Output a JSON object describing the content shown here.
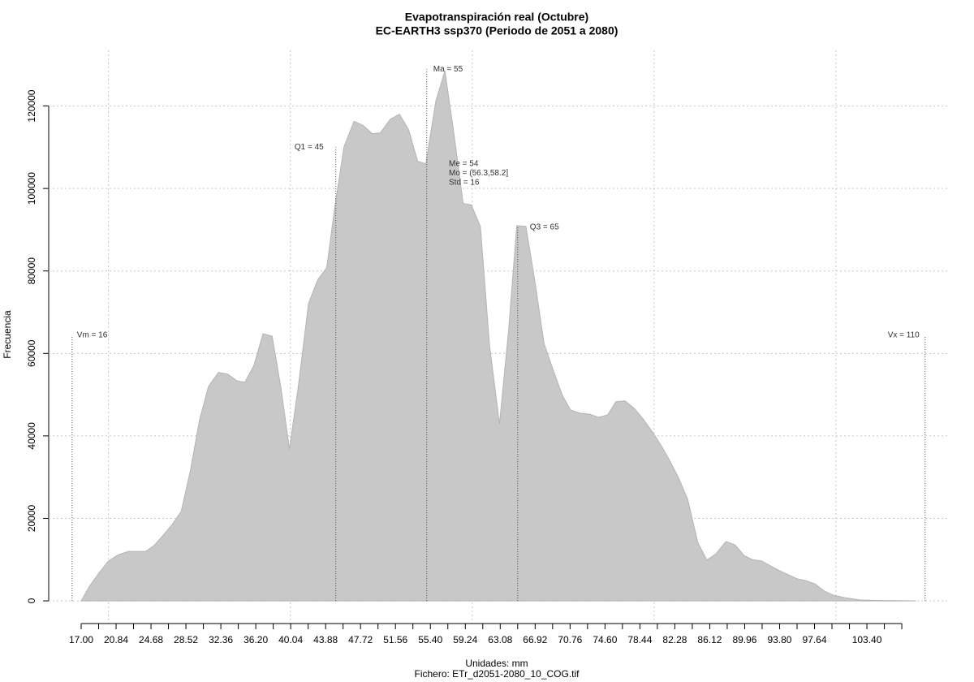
{
  "chart_data": {
    "type": "area",
    "title": "Evapotranspiración real (Octubre)",
    "subtitle": "EC-EARTH3 ssp370 (Periodo de 2051 a 2080)",
    "x_label": "Unidades: mm",
    "footer": "Fichero: ETr_d2051-2080_10_COG.tif",
    "y_label": "Frecuencia",
    "color": "#c8c8c8",
    "x": [
      17.0,
      17.9,
      19.0,
      20.0,
      21.1,
      22.2,
      23.3,
      24.1,
      25.0,
      25.9,
      27.0,
      28.0,
      29.0,
      30.0,
      31.0,
      32.1,
      33.1,
      34.1,
      35.0,
      36.0,
      37.0,
      38.0,
      39.0,
      39.9,
      40.9,
      42.0,
      43.0,
      44.0,
      44.9,
      45.9,
      47.0,
      48.0,
      49.0,
      49.9,
      51.0,
      52.0,
      53.0,
      54.0,
      54.9,
      56.0,
      57.0,
      58.0,
      59.0,
      59.9,
      60.9,
      61.9,
      63.0,
      64.0,
      64.9,
      65.9,
      66.9,
      67.9,
      68.9,
      69.9,
      70.8,
      71.9,
      72.9,
      73.9,
      74.9,
      75.8,
      76.8,
      77.8,
      78.8,
      79.8,
      80.8,
      81.7,
      82.7,
      83.7,
      84.8,
      85.8,
      86.8,
      87.9,
      88.9,
      89.9,
      90.8,
      91.8,
      92.8,
      93.8,
      94.8,
      95.8,
      96.7,
      97.7,
      98.7,
      99.7,
      100.9,
      102.7,
      104.5,
      107.2,
      108.8
    ],
    "values": [
      0,
      3500,
      6900,
      9650,
      11200,
      12000,
      12000,
      12000,
      13400,
      15600,
      18500,
      21700,
      31500,
      43700,
      52000,
      55400,
      55000,
      53400,
      53000,
      57100,
      64800,
      64200,
      51200,
      36800,
      52400,
      72100,
      77800,
      80800,
      95600,
      110100,
      116300,
      115300,
      113300,
      113500,
      116800,
      118000,
      114300,
      106600,
      106000,
      121200,
      128500,
      113100,
      96400,
      96000,
      90800,
      62100,
      42900,
      65600,
      91000,
      90800,
      77400,
      62400,
      56000,
      49900,
      46300,
      45500,
      45300,
      44500,
      45100,
      48300,
      48500,
      46700,
      44100,
      41000,
      37600,
      34100,
      29800,
      24600,
      14200,
      9900,
      11400,
      14400,
      13600,
      11000,
      10000,
      9700,
      8500,
      7300,
      6300,
      5300,
      4900,
      4100,
      2400,
      1400,
      800,
      200,
      100,
      50,
      0
    ],
    "xlim": [
      13.43,
      112.5
    ],
    "ylim": [
      -5500,
      133500
    ],
    "yticks": [
      0,
      20000,
      40000,
      60000,
      80000,
      100000,
      120000
    ],
    "xticks": [
      {
        "value": 17.0,
        "label": "17.00"
      },
      {
        "value": 20.84,
        "label": "20.84"
      },
      {
        "value": 24.68,
        "label": "24.68"
      },
      {
        "value": 28.52,
        "label": "28.52"
      },
      {
        "value": 32.36,
        "label": "32.36"
      },
      {
        "value": 36.2,
        "label": "36.20"
      },
      {
        "value": 40.04,
        "label": "40.04"
      },
      {
        "value": 43.88,
        "label": "43.88"
      },
      {
        "value": 47.72,
        "label": "47.72"
      },
      {
        "value": 51.56,
        "label": "51.56"
      },
      {
        "value": 55.4,
        "label": "55.40"
      },
      {
        "value": 59.24,
        "label": "59.24"
      },
      {
        "value": 63.08,
        "label": "63.08"
      },
      {
        "value": 66.92,
        "label": "66.92"
      },
      {
        "value": 70.76,
        "label": "70.76"
      },
      {
        "value": 74.6,
        "label": "74.60"
      },
      {
        "value": 78.44,
        "label": "78.44"
      },
      {
        "value": 82.28,
        "label": "82.28"
      },
      {
        "value": 86.12,
        "label": "86.12"
      },
      {
        "value": 89.96,
        "label": "89.96"
      },
      {
        "value": 93.8,
        "label": "93.80"
      },
      {
        "value": 97.64,
        "label": "97.64"
      },
      {
        "value": 103.4,
        "label": "103.40"
      }
    ],
    "xminorticks": [
      18.92,
      22.76,
      26.6,
      30.44,
      34.28,
      38.12,
      41.96,
      45.8,
      49.64,
      53.48,
      57.32,
      61.16,
      65.0,
      68.84,
      72.68,
      76.52,
      80.36,
      84.2,
      88.04,
      91.88,
      95.72,
      99.56,
      101.48,
      105.32,
      107.24
    ],
    "xgrid": [
      20,
      40,
      60,
      80,
      100
    ],
    "grid": true,
    "annotations": [
      {
        "text": "Vm = 16",
        "x": 16.0,
        "y": 64400
      },
      {
        "text": "Q1 = 45",
        "x": 45.0,
        "y": 110000
      },
      {
        "text": "Ma = 55",
        "x": 55.0,
        "y": 128900
      },
      {
        "text": "Q3 = 65",
        "x": 65.0,
        "y": 90600
      },
      {
        "text": "Vx = 110",
        "x": 109.8,
        "y": 64400
      }
    ],
    "stats": [
      "Me = 54",
      "Mo = (56.3,58.2]",
      "Std = 16"
    ]
  }
}
